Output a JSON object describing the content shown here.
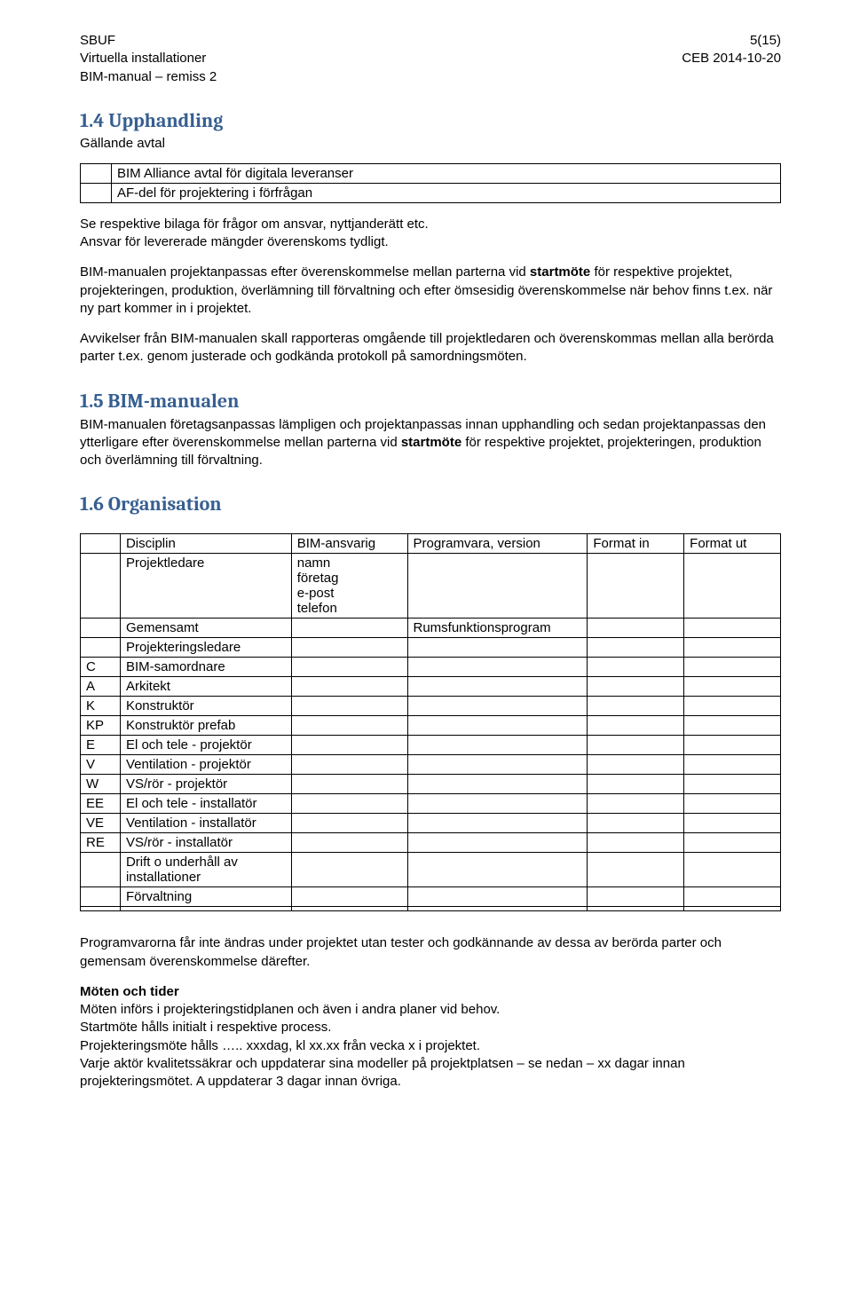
{
  "header": {
    "left1": "SBUF",
    "left2": "Virtuella installationer",
    "left3": "BIM-manual – remiss 2",
    "pagenum": "5(15)",
    "date": "CEB 2014-10-20"
  },
  "s14": {
    "title": "1.4  Upphandling",
    "sub": "Gällande avtal",
    "row1": "BIM Alliance avtal för digitala leveranser",
    "row2": "AF-del för projektering i förfrågan",
    "p1": "Se respektive bilaga för frågor om ansvar, nyttjanderätt etc.",
    "p1b": "Ansvar för levererade mängder överenskoms tydligt.",
    "p2a": "BIM-manualen projektanpassas efter överenskommelse mellan parterna vid ",
    "p2bold": "startmöte",
    "p2b": " för respektive projektet, projekteringen, produktion, överlämning till förvaltning och efter ömsesidig överenskommelse när behov finns t.ex. när ny part kommer in i projektet.",
    "p3": "Avvikelser från BIM-manualen skall rapporteras omgående till projektledaren och överenskommas mellan alla berörda parter t.ex. genom justerade och godkända protokoll på samordningsmöten."
  },
  "s15": {
    "title": "1.5  BIM-manualen",
    "p1a": "BIM-manualen företagsanpassas lämpligen och projektanpassas innan upphandling och sedan projektanpassas den ytterligare efter överenskommelse mellan parterna vid ",
    "p1bold": "startmöte",
    "p1b": " för respektive projektet, projekteringen, produktion och överlämning till förvaltning."
  },
  "s16": {
    "title": "1.6  Organisation",
    "headers": {
      "disc": "Disciplin",
      "ans": "BIM-ansvarig",
      "prog": "Programvara, version",
      "fin": "Format in",
      "fout": "Format ut"
    },
    "rows": [
      {
        "code": "",
        "disc": "Projektledare",
        "ans": "namn\nföretag\ne-post\ntelefon",
        "prog": ""
      },
      {
        "code": "",
        "disc": "Gemensamt",
        "ans": "",
        "prog": "Rumsfunktionsprogram"
      },
      {
        "code": "",
        "disc": "Projekteringsledare",
        "ans": "",
        "prog": ""
      },
      {
        "code": "C",
        "disc": "BIM-samordnare",
        "ans": "",
        "prog": ""
      },
      {
        "code": "A",
        "disc": "Arkitekt",
        "ans": "",
        "prog": ""
      },
      {
        "code": "K",
        "disc": "Konstruktör",
        "ans": "",
        "prog": ""
      },
      {
        "code": "KP",
        "disc": "Konstruktör prefab",
        "ans": "",
        "prog": ""
      },
      {
        "code": "E",
        "disc": "El och tele - projektör",
        "ans": "",
        "prog": ""
      },
      {
        "code": "V",
        "disc": "Ventilation - projektör",
        "ans": "",
        "prog": ""
      },
      {
        "code": "W",
        "disc": "VS/rör - projektör",
        "ans": "",
        "prog": ""
      },
      {
        "code": "EE",
        "disc": "El och tele - installatör",
        "ans": "",
        "prog": ""
      },
      {
        "code": "VE",
        "disc": "Ventilation - installatör",
        "ans": "",
        "prog": ""
      },
      {
        "code": "RE",
        "disc": "VS/rör - installatör",
        "ans": "",
        "prog": ""
      },
      {
        "code": "",
        "disc": "Drift o underhåll av installationer",
        "ans": "",
        "prog": ""
      },
      {
        "code": "",
        "disc": "Förvaltning",
        "ans": "",
        "prog": ""
      },
      {
        "code": "",
        "disc": "",
        "ans": "",
        "prog": ""
      }
    ],
    "after_p1": "Programvarorna får inte ändras under projektet utan tester och godkännande av dessa av berörda parter och gemensam överenskommelse därefter.",
    "moten_title": "Möten och tider",
    "moten_l1": "Möten införs i projekteringstidplanen och även i andra planer vid behov.",
    "moten_l2": "Startmöte hålls initialt i respektive process.",
    "moten_l3": "Projekteringsmöte hålls ….. xxxdag, kl xx.xx från vecka x i projektet.",
    "moten_l4": "Varje aktör kvalitetssäkrar och uppdaterar sina modeller på projektplatsen – se nedan – xx dagar innan projekteringsmötet. A uppdaterar 3 dagar innan övriga."
  }
}
